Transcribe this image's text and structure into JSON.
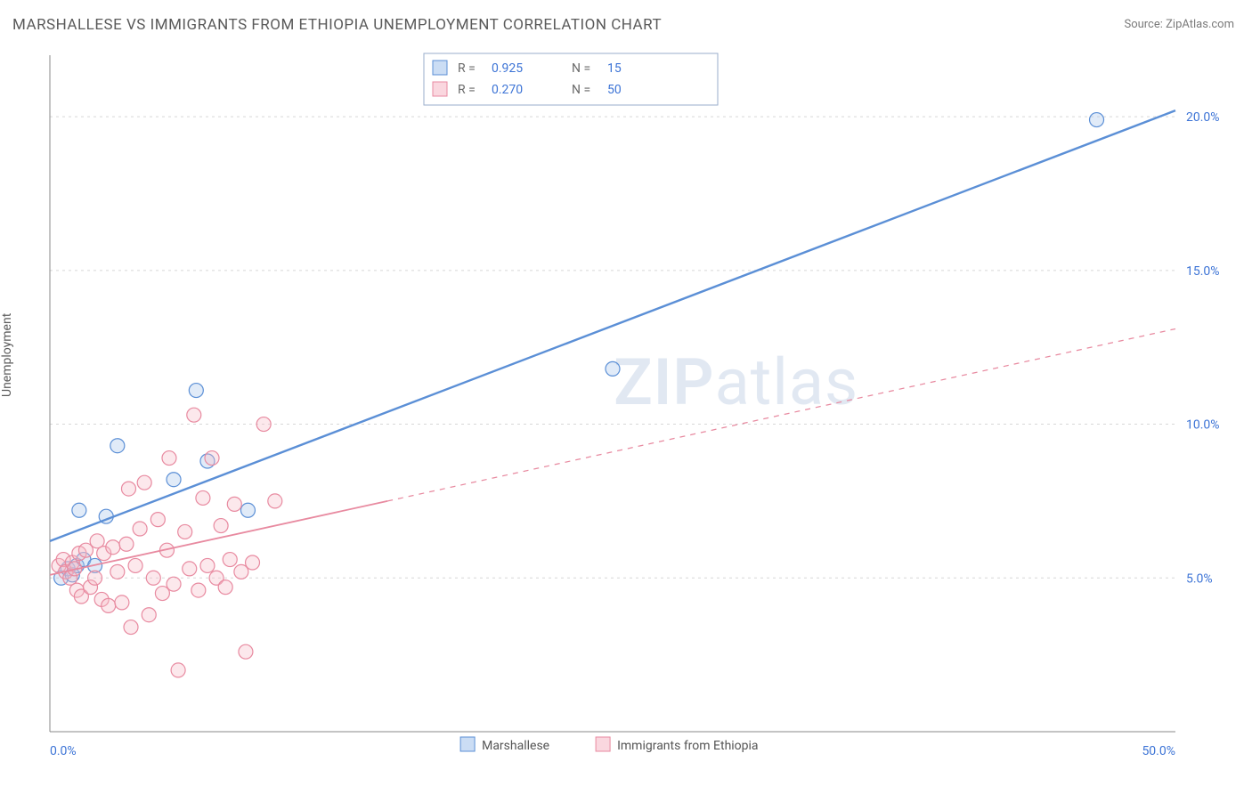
{
  "title": "MARSHALLESE VS IMMIGRANTS FROM ETHIOPIA UNEMPLOYMENT CORRELATION CHART",
  "source_label": "Source: ZipAtlas.com",
  "ylabel": "Unemployment",
  "watermark_a": "ZIP",
  "watermark_b": "atlas",
  "chart": {
    "type": "scatter",
    "xlim": [
      0,
      50
    ],
    "ylim": [
      0,
      22
    ],
    "x_ticks": [
      {
        "v": 0,
        "label": "0.0%"
      },
      {
        "v": 50,
        "label": "50.0%"
      }
    ],
    "y_ticks": [
      {
        "v": 5,
        "label": "5.0%"
      },
      {
        "v": 10,
        "label": "10.0%"
      },
      {
        "v": 15,
        "label": "15.0%"
      },
      {
        "v": 20,
        "label": "20.0%"
      }
    ],
    "background_color": "#ffffff",
    "grid_color": "#d7d7d7",
    "axis_color": "#888888",
    "tick_label_color": "#3d74d6",
    "marker_radius": 8,
    "marker_stroke_width": 1.2,
    "marker_fill_opacity": 0.35,
    "series": [
      {
        "id": "marshallese",
        "label": "Marshallese",
        "color_stroke": "#5b8fd6",
        "color_fill": "#a9c6ec",
        "R": "0.925",
        "N": "15",
        "trend": {
          "solid": {
            "x1": 0,
            "y1": 6.2,
            "x2": 50,
            "y2": 20.2
          },
          "width": 2.4
        },
        "points": [
          {
            "x": 0.5,
            "y": 5.0
          },
          {
            "x": 0.8,
            "y": 5.3
          },
          {
            "x": 1.0,
            "y": 5.1
          },
          {
            "x": 1.2,
            "y": 5.4
          },
          {
            "x": 1.3,
            "y": 7.2
          },
          {
            "x": 1.5,
            "y": 5.6
          },
          {
            "x": 2.0,
            "y": 5.4
          },
          {
            "x": 2.5,
            "y": 7.0
          },
          {
            "x": 3.0,
            "y": 9.3
          },
          {
            "x": 5.5,
            "y": 8.2
          },
          {
            "x": 6.5,
            "y": 11.1
          },
          {
            "x": 7.0,
            "y": 8.8
          },
          {
            "x": 8.8,
            "y": 7.2
          },
          {
            "x": 25.0,
            "y": 11.8
          },
          {
            "x": 46.5,
            "y": 19.9
          }
        ]
      },
      {
        "id": "ethiopia",
        "label": "Immigrants from Ethiopia",
        "color_stroke": "#e88aa0",
        "color_fill": "#f6bcc9",
        "R": "0.270",
        "N": "50",
        "trend": {
          "solid": {
            "x1": 0,
            "y1": 5.1,
            "x2": 15,
            "y2": 7.5
          },
          "dashed": {
            "x1": 15,
            "y1": 7.5,
            "x2": 50,
            "y2": 13.1
          },
          "width": 1.8,
          "dash": "6 6"
        },
        "points": [
          {
            "x": 0.4,
            "y": 5.4
          },
          {
            "x": 0.6,
            "y": 5.6
          },
          {
            "x": 0.7,
            "y": 5.2
          },
          {
            "x": 0.9,
            "y": 5.0
          },
          {
            "x": 1.0,
            "y": 5.5
          },
          {
            "x": 1.1,
            "y": 5.3
          },
          {
            "x": 1.2,
            "y": 4.6
          },
          {
            "x": 1.3,
            "y": 5.8
          },
          {
            "x": 1.4,
            "y": 4.4
          },
          {
            "x": 1.6,
            "y": 5.9
          },
          {
            "x": 1.8,
            "y": 4.7
          },
          {
            "x": 2.0,
            "y": 5.0
          },
          {
            "x": 2.1,
            "y": 6.2
          },
          {
            "x": 2.3,
            "y": 4.3
          },
          {
            "x": 2.4,
            "y": 5.8
          },
          {
            "x": 2.6,
            "y": 4.1
          },
          {
            "x": 2.8,
            "y": 6.0
          },
          {
            "x": 3.0,
            "y": 5.2
          },
          {
            "x": 3.2,
            "y": 4.2
          },
          {
            "x": 3.4,
            "y": 6.1
          },
          {
            "x": 3.5,
            "y": 7.9
          },
          {
            "x": 3.6,
            "y": 3.4
          },
          {
            "x": 3.8,
            "y": 5.4
          },
          {
            "x": 4.0,
            "y": 6.6
          },
          {
            "x": 4.2,
            "y": 8.1
          },
          {
            "x": 4.4,
            "y": 3.8
          },
          {
            "x": 4.6,
            "y": 5.0
          },
          {
            "x": 4.8,
            "y": 6.9
          },
          {
            "x": 5.0,
            "y": 4.5
          },
          {
            "x": 5.2,
            "y": 5.9
          },
          {
            "x": 5.3,
            "y": 8.9
          },
          {
            "x": 5.5,
            "y": 4.8
          },
          {
            "x": 5.7,
            "y": 2.0
          },
          {
            "x": 6.0,
            "y": 6.5
          },
          {
            "x": 6.2,
            "y": 5.3
          },
          {
            "x": 6.4,
            "y": 10.3
          },
          {
            "x": 6.6,
            "y": 4.6
          },
          {
            "x": 6.8,
            "y": 7.6
          },
          {
            "x": 7.0,
            "y": 5.4
          },
          {
            "x": 7.2,
            "y": 8.9
          },
          {
            "x": 7.4,
            "y": 5.0
          },
          {
            "x": 7.6,
            "y": 6.7
          },
          {
            "x": 7.8,
            "y": 4.7
          },
          {
            "x": 8.0,
            "y": 5.6
          },
          {
            "x": 8.2,
            "y": 7.4
          },
          {
            "x": 8.5,
            "y": 5.2
          },
          {
            "x": 8.7,
            "y": 2.6
          },
          {
            "x": 9.0,
            "y": 5.5
          },
          {
            "x": 9.5,
            "y": 10.0
          },
          {
            "x": 10.0,
            "y": 7.5
          }
        ]
      }
    ],
    "legend_top": {
      "box_stroke": "#9aaecb",
      "swatch_size": 16
    },
    "legend_bottom": {
      "swatch_size": 16
    }
  }
}
